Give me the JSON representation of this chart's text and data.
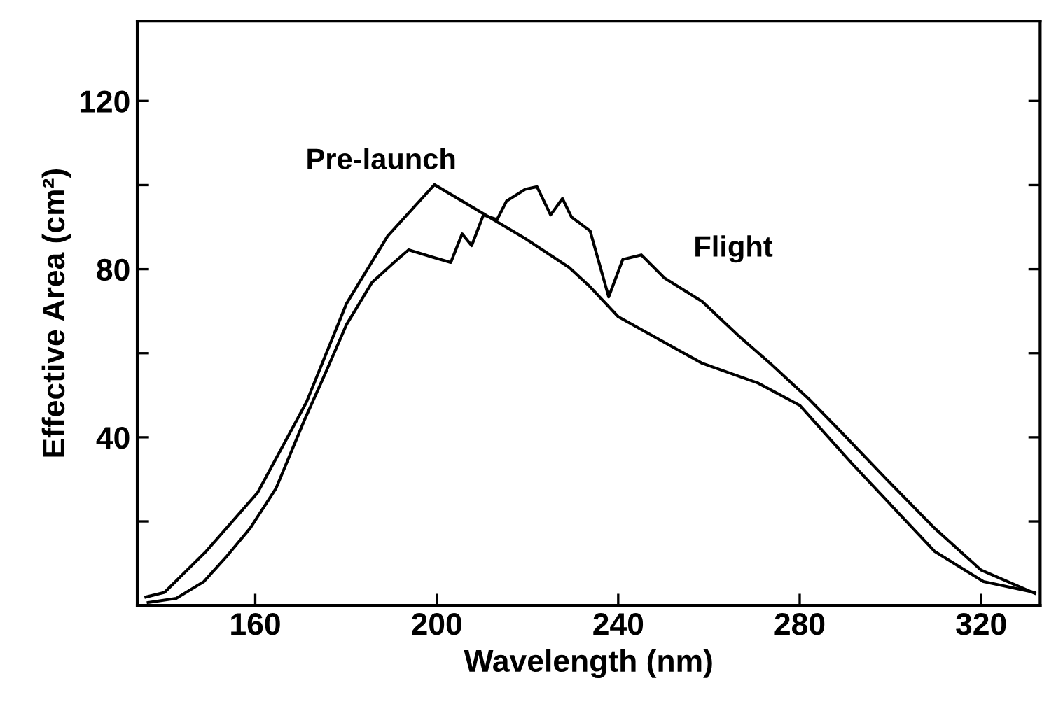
{
  "chart_data": {
    "type": "line",
    "xlabel": "Wavelength (nm)",
    "ylabel": "Effective Area (cm²)",
    "xlim": [
      134,
      333
    ],
    "ylim": [
      0,
      139
    ],
    "xticks": [
      160,
      200,
      240,
      280,
      320
    ],
    "yticks": [
      {
        "value": 20,
        "label": null
      },
      40,
      {
        "value": 60,
        "label": null
      },
      80,
      {
        "value": 100,
        "label": null
      },
      120
    ],
    "grid": false,
    "legend": false,
    "marker": "none",
    "line_style": "solid",
    "series": [
      {
        "name": "Pre-launch",
        "color": "#000000",
        "x": [
          135.9,
          140,
          149.2,
          160.5,
          171.3,
          180.1,
          189.2,
          199.5,
          219.5,
          229.2,
          233.8,
          240,
          258.5,
          270.8,
          280,
          291.3,
          309.7,
          320.5,
          331.8
        ],
        "values": [
          2.0,
          3.1,
          12.9,
          26.8,
          48.4,
          71.8,
          87.9,
          100.1,
          87.3,
          80.4,
          75.8,
          68.7,
          57.6,
          52.9,
          47.6,
          34,
          12.9,
          5.7,
          3.1
        ]
      },
      {
        "name": "Flight",
        "color": "#000000",
        "x": [
          136.4,
          142.6,
          148.7,
          153.8,
          158.9,
          164.6,
          170.8,
          175.4,
          180.1,
          185.7,
          190.8,
          193.8,
          199,
          203.1,
          205.6,
          207.7,
          210.3,
          213.3,
          215.4,
          219.5,
          222.1,
          225.1,
          227.7,
          229.7,
          233.8,
          237.9,
          241,
          245.1,
          250.2,
          258.5,
          266.7,
          273.8,
          282.1,
          289.2,
          299.5,
          309.7,
          320,
          331.8
        ],
        "values": [
          0.7,
          1.7,
          5.7,
          11.8,
          18.4,
          27.9,
          44,
          55.1,
          66.8,
          76.8,
          81.8,
          84.6,
          82.9,
          81.6,
          88.4,
          85.6,
          92.9,
          91.8,
          96.2,
          99,
          99.6,
          92.9,
          96.8,
          92.4,
          89.1,
          73.4,
          82.3,
          83.4,
          77.9,
          72.3,
          64,
          57.3,
          49,
          41.2,
          29.6,
          18.4,
          8.4,
          2.9
        ]
      }
    ]
  }
}
